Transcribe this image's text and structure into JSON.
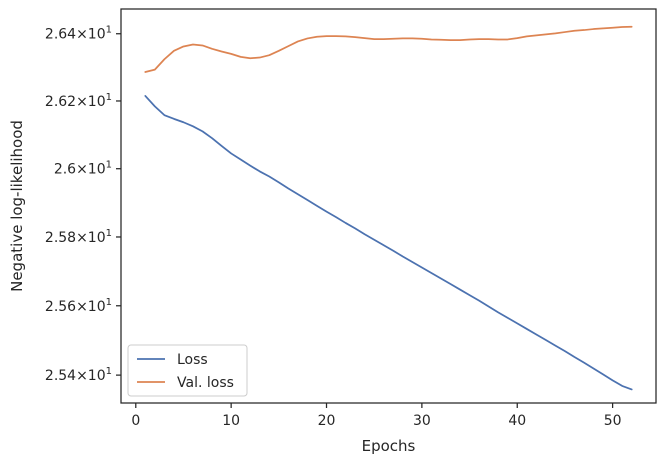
{
  "chart_data": {
    "type": "line",
    "title": "",
    "xlabel": "Epochs",
    "ylabel": "Negative log-likelihood",
    "y_scale": "log",
    "xlim": [
      -1.55,
      54.55
    ],
    "ylim": [
      25.32,
      26.474
    ],
    "x_ticks": [
      0,
      10,
      20,
      30,
      40,
      50
    ],
    "y_ticks": [
      {
        "value": 25.4,
        "mantissa": "2.54",
        "exponent": "1"
      },
      {
        "value": 25.6,
        "mantissa": "2.56",
        "exponent": "1"
      },
      {
        "value": 25.8,
        "mantissa": "2.58",
        "exponent": "1"
      },
      {
        "value": 26.0,
        "mantissa": "2.6",
        "exponent": "1"
      },
      {
        "value": 26.2,
        "mantissa": "2.62",
        "exponent": "1"
      },
      {
        "value": 26.4,
        "mantissa": "2.64",
        "exponent": "1"
      }
    ],
    "grid": false,
    "legend_position": "lower-left",
    "x": [
      1,
      2,
      3,
      4,
      5,
      6,
      7,
      8,
      9,
      10,
      11,
      12,
      13,
      14,
      15,
      16,
      17,
      18,
      19,
      20,
      21,
      22,
      23,
      24,
      25,
      26,
      27,
      28,
      29,
      30,
      31,
      32,
      33,
      34,
      35,
      36,
      37,
      38,
      39,
      40,
      41,
      42,
      43,
      44,
      45,
      46,
      47,
      48,
      49,
      50,
      51,
      52
    ],
    "series": [
      {
        "name": "Loss",
        "color": "#4c72b0",
        "values": [
          26.215,
          26.184,
          26.158,
          26.147,
          26.137,
          26.125,
          26.11,
          26.09,
          26.067,
          26.045,
          26.027,
          26.009,
          25.992,
          25.977,
          25.96,
          25.942,
          25.925,
          25.908,
          25.891,
          25.874,
          25.858,
          25.841,
          25.825,
          25.808,
          25.792,
          25.776,
          25.76,
          25.743,
          25.727,
          25.711,
          25.695,
          25.679,
          25.663,
          25.647,
          25.631,
          25.615,
          25.598,
          25.581,
          25.565,
          25.549,
          25.533,
          25.517,
          25.501,
          25.485,
          25.469,
          25.452,
          25.436,
          25.419,
          25.402,
          25.385,
          25.369,
          25.359
        ]
      },
      {
        "name": "Val. loss",
        "color": "#dd8452",
        "values": [
          26.286,
          26.293,
          26.324,
          26.349,
          26.362,
          26.368,
          26.365,
          26.355,
          26.347,
          26.34,
          26.331,
          26.327,
          26.329,
          26.336,
          26.349,
          26.363,
          26.377,
          26.386,
          26.391,
          26.393,
          26.393,
          26.392,
          26.39,
          26.387,
          26.384,
          26.384,
          26.385,
          26.386,
          26.386,
          26.385,
          26.383,
          26.382,
          26.381,
          26.381,
          26.383,
          26.384,
          26.384,
          26.383,
          26.383,
          26.387,
          26.392,
          26.395,
          26.398,
          26.401,
          26.405,
          26.409,
          26.411,
          26.414,
          26.416,
          26.418,
          26.42,
          26.421
        ]
      }
    ]
  }
}
